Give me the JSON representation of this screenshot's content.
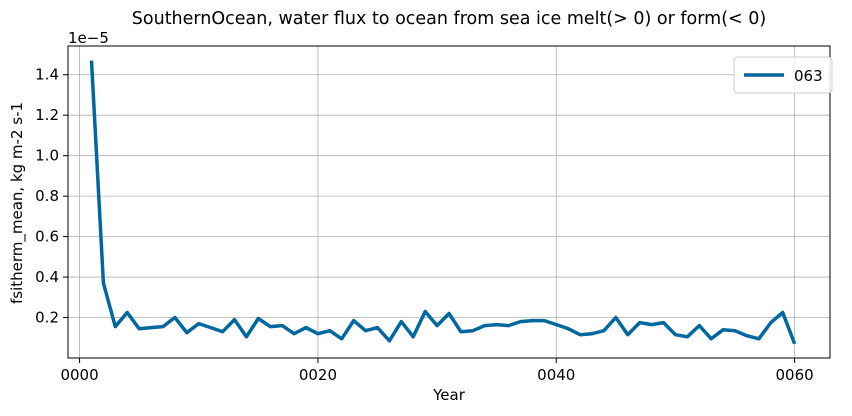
{
  "chart_data": {
    "type": "line",
    "title": "SouthernOcean, water flux to ocean from sea ice melt(> 0) or form(< 0)",
    "xlabel": "Year",
    "ylabel": "fsitherm_mean, kg m-2 s-1",
    "y_offset_label": "1e−5",
    "xlim": [
      -0.97,
      62.97
    ],
    "ylim": [
      0.0,
      1.542
    ],
    "x_ticks": [
      0,
      20,
      40,
      60
    ],
    "x_tick_labels": [
      "0000",
      "0020",
      "0040",
      "0060"
    ],
    "y_ticks": [
      0.2,
      0.4,
      0.6,
      0.8,
      1.0,
      1.2,
      1.4
    ],
    "y_tick_labels": [
      "0.2",
      "0.4",
      "0.6",
      "0.8",
      "1.0",
      "1.2",
      "1.4"
    ],
    "grid": true,
    "legend_position": "top-right",
    "series": [
      {
        "name": "063",
        "color": "#00679f",
        "x": [
          1,
          2,
          3,
          4,
          5,
          6,
          7,
          8,
          9,
          10,
          11,
          12,
          13,
          14,
          15,
          16,
          17,
          18,
          19,
          20,
          21,
          22,
          23,
          24,
          25,
          26,
          27,
          28,
          29,
          30,
          31,
          32,
          33,
          34,
          35,
          36,
          37,
          38,
          39,
          40,
          41,
          42,
          43,
          44,
          45,
          46,
          47,
          48,
          49,
          50,
          51,
          52,
          53,
          54,
          55,
          56,
          57,
          58,
          59,
          60
        ],
        "values": [
          1.47,
          0.37,
          0.155,
          0.225,
          0.145,
          0.15,
          0.155,
          0.2,
          0.125,
          0.17,
          0.15,
          0.13,
          0.19,
          0.105,
          0.195,
          0.155,
          0.16,
          0.12,
          0.15,
          0.12,
          0.135,
          0.095,
          0.185,
          0.135,
          0.15,
          0.085,
          0.18,
          0.105,
          0.23,
          0.16,
          0.22,
          0.13,
          0.135,
          0.16,
          0.165,
          0.16,
          0.18,
          0.185,
          0.185,
          0.165,
          0.145,
          0.115,
          0.12,
          0.135,
          0.2,
          0.115,
          0.175,
          0.165,
          0.175,
          0.115,
          0.105,
          0.16,
          0.095,
          0.14,
          0.135,
          0.11,
          0.095,
          0.175,
          0.225,
          0.07
        ]
      }
    ]
  }
}
